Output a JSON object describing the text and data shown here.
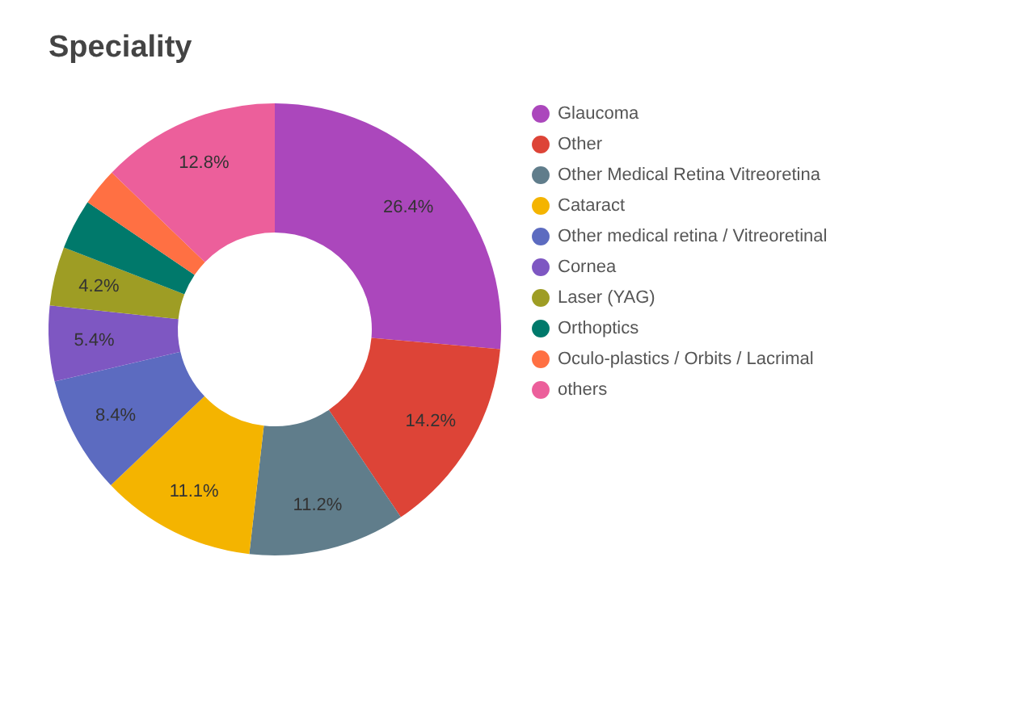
{
  "chart_data": {
    "type": "donut",
    "title": "Speciality",
    "categories": [
      "Glaucoma",
      "Other",
      "Other Medical Retina Vitreoretina",
      "Cataract",
      "Other medical retina / Vitreoretinal",
      "Cornea",
      "Laser (YAG)",
      "Orthoptics",
      "Oculo-plastics / Orbits / Lacrimal",
      "others"
    ],
    "values": [
      26.4,
      14.2,
      11.2,
      11.1,
      8.4,
      5.4,
      4.2,
      3.6,
      2.7,
      12.8
    ],
    "value_labels": [
      "26.4%",
      "14.2%",
      "11.2%",
      "11.1%",
      "8.4%",
      "5.4%",
      "4.2%",
      null,
      null,
      "12.8%"
    ],
    "colors": [
      "#ab47bc",
      "#dd4437",
      "#607d8b",
      "#f4b400",
      "#5c6bc0",
      "#7e57c2",
      "#9e9d24",
      "#00796b",
      "#ff7043",
      "#ec5f9b"
    ],
    "legend": "right"
  }
}
